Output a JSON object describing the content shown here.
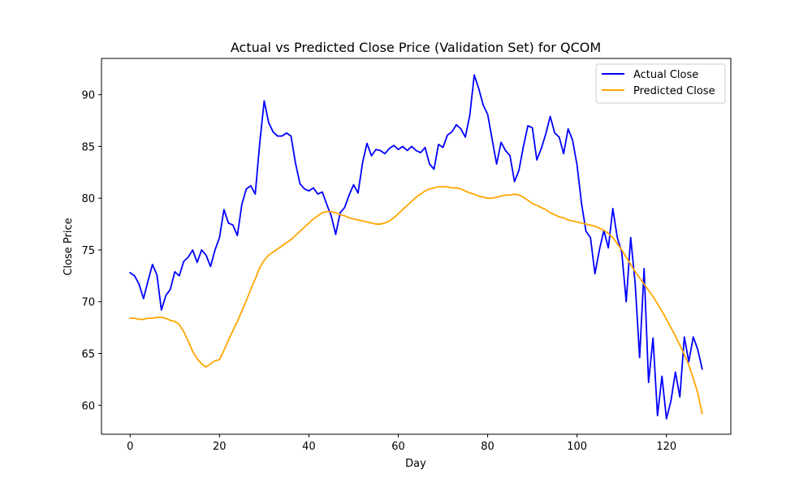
{
  "chart_data": {
    "type": "line",
    "title": "Actual vs Predicted Close Price (Validation Set) for QCOM",
    "xlabel": "Day",
    "ylabel": "Close Price",
    "xlim": [
      -6.4,
      134.4
    ],
    "ylim": [
      57.2,
      93.5
    ],
    "xticks": [
      0,
      20,
      40,
      60,
      80,
      100,
      120
    ],
    "yticks": [
      60,
      65,
      70,
      75,
      80,
      85,
      90
    ],
    "grid": false,
    "legend_position": "top-right",
    "series": [
      {
        "name": "Actual Close",
        "color": "#0000ff",
        "values": [
          72.8,
          72.5,
          71.7,
          70.3,
          72.0,
          73.6,
          72.6,
          69.2,
          70.6,
          71.2,
          72.9,
          72.5,
          73.9,
          74.3,
          75.0,
          73.8,
          75.0,
          74.5,
          73.4,
          75.0,
          76.2,
          78.9,
          77.6,
          77.4,
          76.4,
          79.4,
          80.9,
          81.2,
          80.4,
          85.3,
          89.4,
          87.3,
          86.4,
          86.0,
          86.0,
          86.3,
          86.0,
          83.4,
          81.4,
          80.9,
          80.7,
          81.0,
          80.4,
          80.6,
          79.4,
          78.3,
          76.5,
          78.6,
          79.1,
          80.3,
          81.3,
          80.5,
          83.4,
          85.3,
          84.1,
          84.7,
          84.6,
          84.3,
          84.8,
          85.1,
          84.7,
          85.0,
          84.6,
          85.0,
          84.6,
          84.4,
          84.9,
          83.3,
          82.8,
          85.2,
          84.9,
          86.1,
          86.4,
          87.1,
          86.7,
          85.9,
          88.0,
          91.9,
          90.6,
          89.0,
          88.1,
          85.7,
          83.3,
          85.4,
          84.6,
          84.1,
          81.6,
          82.7,
          85.0,
          87.0,
          86.8,
          83.7,
          84.8,
          86.2,
          87.9,
          86.3,
          85.9,
          84.3,
          86.7,
          85.6,
          83.2,
          79.5,
          76.8,
          76.2,
          72.7,
          75.0,
          76.9,
          75.2,
          79.0,
          76.2,
          74.8,
          70.0,
          76.2,
          71.8,
          64.6,
          73.2,
          62.2,
          66.5,
          59.0,
          62.8,
          58.7,
          60.4,
          63.2,
          60.8,
          66.6,
          64.2,
          66.6,
          65.4,
          63.5
        ]
      },
      {
        "name": "Predicted Close",
        "color": "#ffa500",
        "values": [
          68.4,
          68.4,
          68.3,
          68.3,
          68.4,
          68.4,
          68.5,
          68.5,
          68.4,
          68.2,
          68.1,
          67.8,
          67.1,
          66.2,
          65.2,
          64.5,
          64.0,
          63.7,
          64.0,
          64.3,
          64.4,
          65.3,
          66.3,
          67.2,
          68.1,
          69.1,
          70.1,
          71.2,
          72.2,
          73.3,
          74.0,
          74.5,
          74.8,
          75.1,
          75.4,
          75.7,
          76.0,
          76.4,
          76.8,
          77.2,
          77.6,
          78.0,
          78.3,
          78.6,
          78.7,
          78.7,
          78.6,
          78.4,
          78.3,
          78.1,
          78.0,
          77.9,
          77.8,
          77.7,
          77.6,
          77.5,
          77.5,
          77.6,
          77.8,
          78.1,
          78.5,
          78.9,
          79.3,
          79.7,
          80.1,
          80.4,
          80.7,
          80.9,
          81.0,
          81.1,
          81.1,
          81.1,
          81.0,
          81.0,
          80.9,
          80.7,
          80.5,
          80.4,
          80.2,
          80.1,
          80.0,
          80.0,
          80.1,
          80.2,
          80.3,
          80.3,
          80.4,
          80.3,
          80.1,
          79.8,
          79.5,
          79.3,
          79.1,
          78.9,
          78.6,
          78.4,
          78.2,
          78.1,
          77.9,
          77.8,
          77.7,
          77.6,
          77.5,
          77.4,
          77.3,
          77.1,
          76.9,
          76.6,
          76.2,
          75.6,
          75.0,
          74.3,
          73.6,
          72.9,
          72.3,
          71.7,
          71.1,
          70.5,
          69.8,
          69.1,
          68.3,
          67.5,
          66.7,
          65.8,
          64.9,
          63.9,
          62.6,
          61.2,
          59.2
        ]
      }
    ]
  }
}
